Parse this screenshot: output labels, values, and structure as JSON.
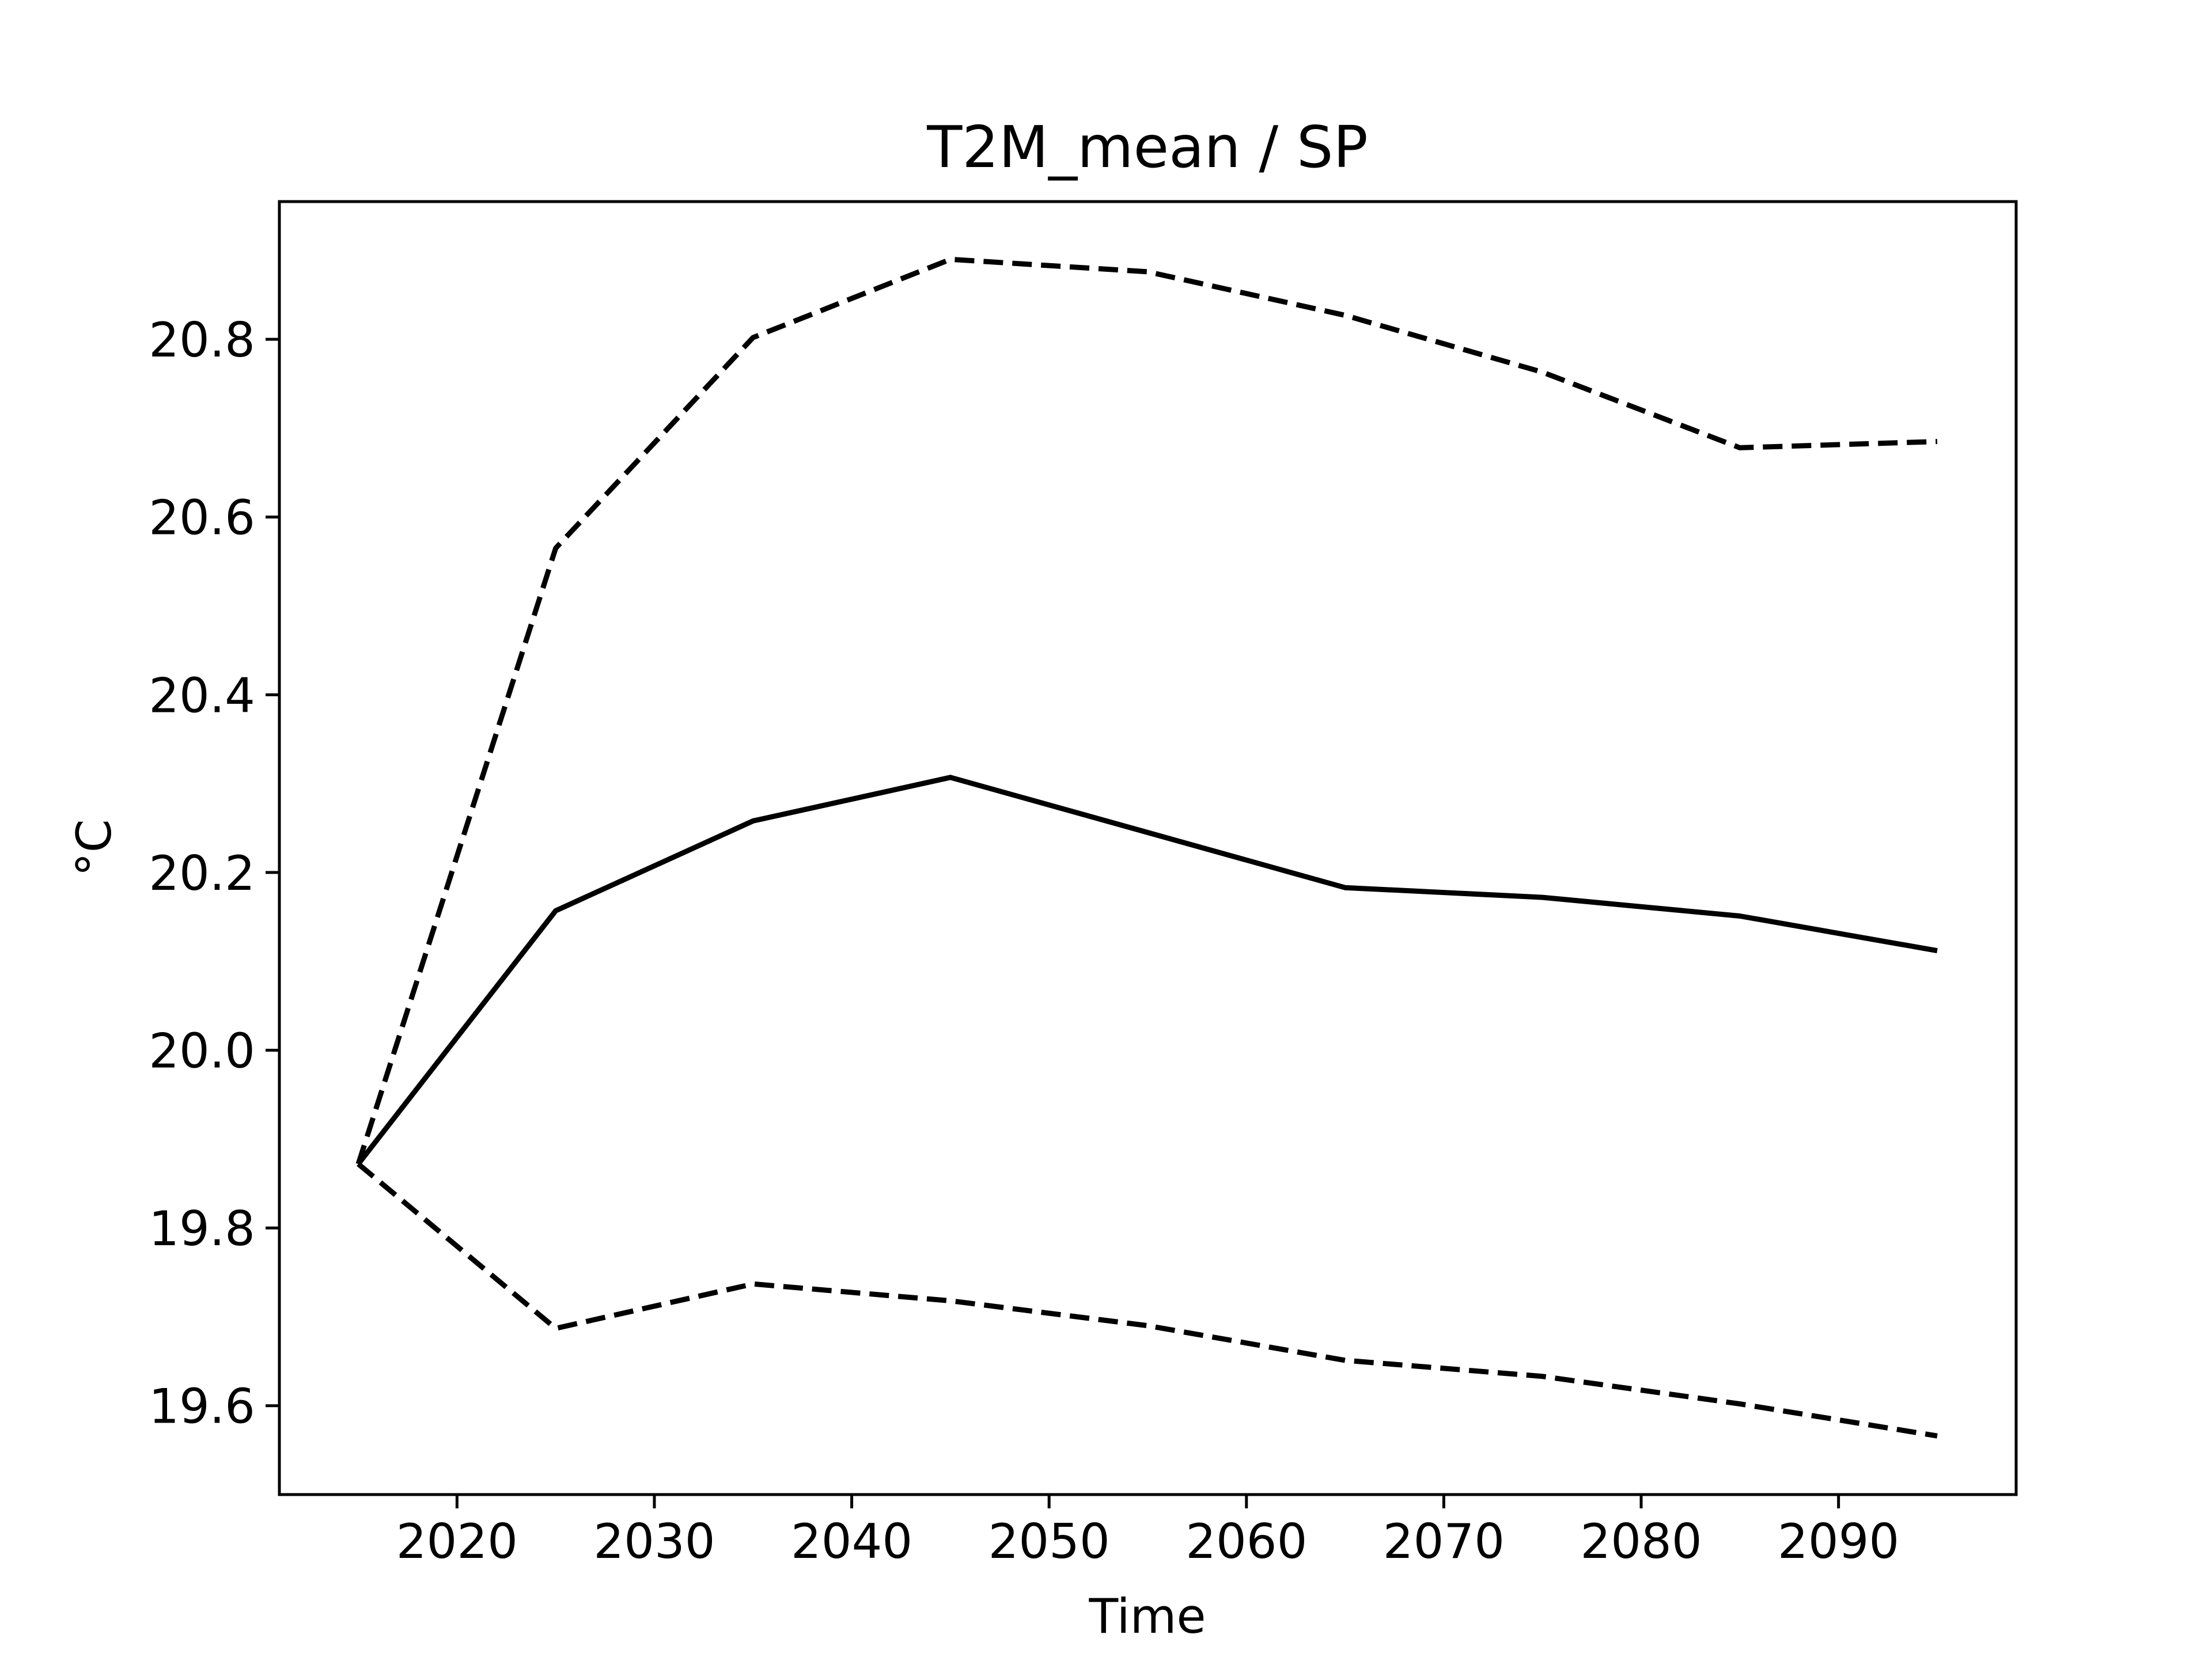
{
  "chart_data": {
    "type": "line",
    "title": "T2M_mean / SP",
    "xlabel": "Time",
    "ylabel": "°C",
    "xlim": [
      2011,
      2099
    ],
    "ylim": [
      19.5,
      20.955
    ],
    "x_ticks": [
      2020,
      2030,
      2040,
      2050,
      2060,
      2070,
      2080,
      2090
    ],
    "y_ticks": [
      19.6,
      19.8,
      20.0,
      20.2,
      20.4,
      20.6,
      20.8
    ],
    "x_tick_labels": [
      "2020",
      "2030",
      "2040",
      "2050",
      "2060",
      "2070",
      "2080",
      "2090"
    ],
    "y_tick_labels": [
      "19.6",
      "19.8",
      "20.0",
      "20.2",
      "20.4",
      "20.6",
      "20.8"
    ],
    "grid": false,
    "x": [
      2015,
      2025,
      2035,
      2045,
      2055,
      2065,
      2075,
      2085,
      2095
    ],
    "series": [
      {
        "style": "solid",
        "color": "#000000",
        "values": [
          19.872,
          20.157,
          20.258,
          20.307,
          20.245,
          20.183,
          20.172,
          20.151,
          20.112
        ]
      },
      {
        "style": "dashed",
        "color": "#000000",
        "values": [
          19.872,
          20.565,
          20.802,
          20.89,
          20.876,
          20.827,
          20.763,
          20.678,
          20.685
        ]
      },
      {
        "style": "dashed",
        "color": "#000000",
        "values": [
          19.872,
          19.687,
          19.737,
          19.718,
          19.69,
          19.651,
          19.633,
          19.602,
          19.566
        ]
      }
    ]
  }
}
